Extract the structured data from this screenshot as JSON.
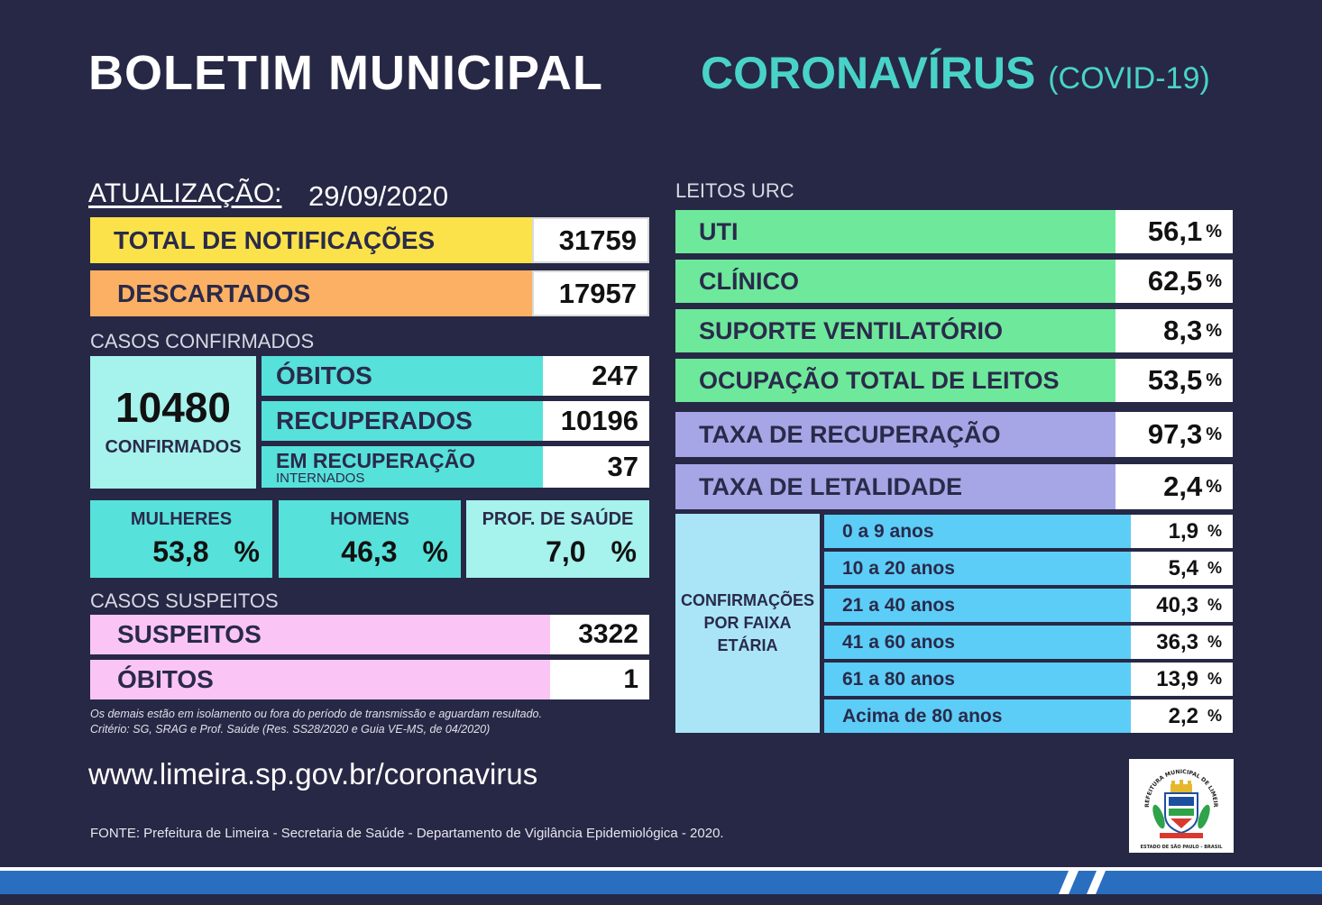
{
  "header": {
    "title_left": "BOLETIM MUNICIPAL",
    "title_right": "CORONAVÍRUS",
    "title_right_sub": "(COVID-19)"
  },
  "update": {
    "label": "ATUALIZAÇÃO:",
    "date": "29/09/2020"
  },
  "notifications": [
    {
      "label": "TOTAL DE NOTIFICAÇÕES",
      "value": "31759",
      "color": "#fbe24a"
    },
    {
      "label": "DESCARTADOS",
      "value": "17957",
      "color": "#fbb063"
    }
  ],
  "confirmed": {
    "section_label": "CASOS CONFIRMADOS",
    "total": "10480",
    "total_caption": "CONFIRMADOS",
    "rows": [
      {
        "label": "ÓBITOS",
        "value": "247"
      },
      {
        "label": "RECUPERADOS",
        "value": "10196"
      },
      {
        "label": "EM RECUPERAÇÃO",
        "sublabel": "INTERNADOS",
        "value": "37"
      }
    ],
    "groups": [
      {
        "label": "MULHERES",
        "value": "53,8",
        "unit": "%"
      },
      {
        "label": "HOMENS",
        "value": "46,3",
        "unit": "%"
      },
      {
        "label": "PROF. DE SAÚDE",
        "value": "7,0",
        "unit": "%"
      }
    ]
  },
  "suspects": {
    "section_label": "CASOS SUSPEITOS",
    "rows": [
      {
        "label": "SUSPEITOS",
        "value": "3322"
      },
      {
        "label": "ÓBITOS",
        "value": "1"
      }
    ]
  },
  "notes": {
    "line1": "Os demais estão em isolamento ou fora do período de transmissão e aguardam resultado.",
    "line2": "Critério: SG, SRAG e Prof. Saúde (Res. SS28/2020 e Guia VE-MS, de 04/2020)"
  },
  "beds": {
    "section_label": "LEITOS URC",
    "rows": [
      {
        "label": "UTI",
        "value": "56,1",
        "unit": "%"
      },
      {
        "label": "CLÍNICO",
        "value": "62,5",
        "unit": "%"
      },
      {
        "label": "SUPORTE VENTILATÓRIO",
        "value": "8,3",
        "unit": "%"
      },
      {
        "label": "OCUPAÇÃO TOTAL DE LEITOS",
        "value": "53,5",
        "unit": "%"
      }
    ]
  },
  "rates": [
    {
      "label": "TAXA DE RECUPERAÇÃO",
      "value": "97,3",
      "unit": "%"
    },
    {
      "label": "TAXA DE LETALIDADE",
      "value": "2,4",
      "unit": "%"
    }
  ],
  "age": {
    "side_label_1": "CONFIRMAÇÕES",
    "side_label_2": "POR FAIXA",
    "side_label_3": "ETÁRIA",
    "rows": [
      {
        "label": "0 a 9 anos",
        "value": "1,9",
        "unit": "%"
      },
      {
        "label": "10 a 20 anos",
        "value": "5,4",
        "unit": "%"
      },
      {
        "label": "21 a 40 anos",
        "value": "40,3",
        "unit": "%"
      },
      {
        "label": "41 a 60 anos",
        "value": "36,3",
        "unit": "%"
      },
      {
        "label": "61 a 80 anos",
        "value": "13,9",
        "unit": "%"
      },
      {
        "label": "Acima de 80 anos",
        "value": "2,2",
        "unit": "%"
      }
    ]
  },
  "footer": {
    "url": "www.limeira.sp.gov.br/coronavirus",
    "source": "FONTE: Prefeitura de Limeira - Secretaria de Saúde - Departamento de Vigilância Epidemiológica - 2020.",
    "logo_text_top": "PREFEITURA MUNICIPAL DE LIMEIRA",
    "logo_text_bottom": "ESTADO DE SÃO PAULO - BRASIL"
  },
  "colors": {
    "background": "#272845",
    "teal": "#56e1da",
    "teal_light": "#a6f2ec",
    "green": "#6ee89b",
    "purple": "#a6a6e6",
    "pink": "#fac5f5",
    "age_blue": "#5ccdf7",
    "age_side": "#a9e5f7",
    "title_accent": "#49d3c8"
  }
}
